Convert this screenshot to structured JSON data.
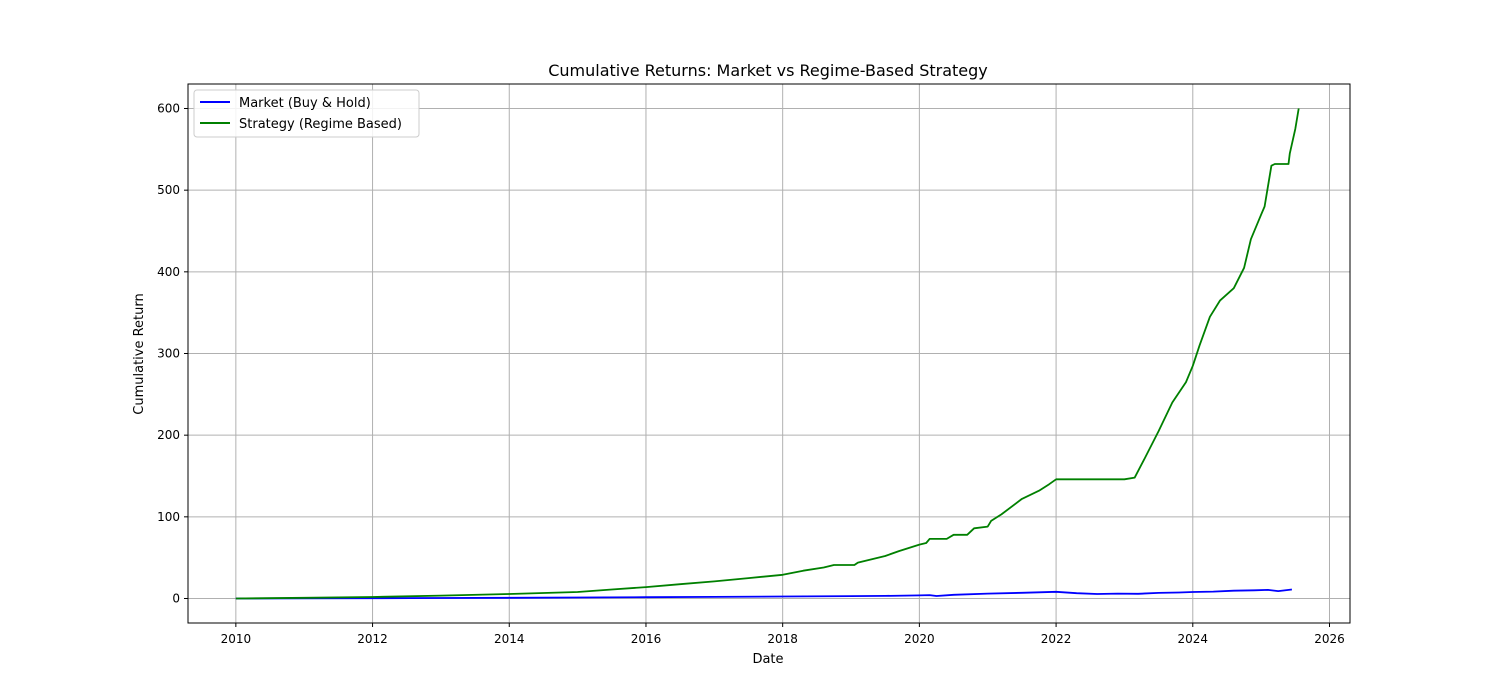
{
  "chart_data": {
    "type": "line",
    "title": "Cumulative Returns: Market vs Regime-Based Strategy",
    "xlabel": "Date",
    "ylabel": "Cumulative Return",
    "xlim": [
      2009.3,
      2026.3
    ],
    "ylim": [
      -30,
      630
    ],
    "xticks": [
      "2010",
      "2012",
      "2014",
      "2016",
      "2018",
      "2020",
      "2022",
      "2024",
      "2026"
    ],
    "yticks": [
      "0",
      "100",
      "200",
      "300",
      "400",
      "500",
      "600"
    ],
    "grid": true,
    "legend": "top-left",
    "series": [
      {
        "name": "Market (Buy & Hold)",
        "color": "#0000ff",
        "x": [
          2010.0,
          2011.0,
          2012.0,
          2013.0,
          2014.0,
          2015.0,
          2016.0,
          2017.0,
          2018.0,
          2019.0,
          2019.5,
          2020.0,
          2020.15,
          2020.25,
          2020.5,
          2021.0,
          2021.5,
          2022.0,
          2022.3,
          2022.6,
          2022.9,
          2023.2,
          2023.5,
          2023.8,
          2024.0,
          2024.3,
          2024.6,
          2024.9,
          2025.1,
          2025.25,
          2025.45
        ],
        "y": [
          0,
          0.2,
          0.4,
          0.6,
          0.9,
          1.2,
          1.6,
          1.9,
          2.4,
          2.9,
          3.2,
          3.8,
          4.2,
          3.0,
          4.5,
          6.0,
          7.0,
          8.2,
          6.5,
          5.5,
          6.0,
          5.8,
          6.8,
          7.3,
          8.0,
          8.5,
          9.5,
          10.0,
          10.5,
          9.0,
          11.0
        ]
      },
      {
        "name": "Strategy (Regime Based)",
        "color": "#008000",
        "x": [
          2010.0,
          2011.0,
          2012.0,
          2013.0,
          2014.0,
          2015.0,
          2015.5,
          2016.0,
          2016.5,
          2017.0,
          2017.5,
          2018.0,
          2018.3,
          2018.6,
          2018.75,
          2019.05,
          2019.1,
          2019.5,
          2019.7,
          2020.0,
          2020.1,
          2020.15,
          2020.4,
          2020.5,
          2020.7,
          2020.8,
          2021.0,
          2021.05,
          2021.2,
          2021.5,
          2021.75,
          2021.9,
          2022.0,
          2022.5,
          2023.0,
          2023.15,
          2023.3,
          2023.5,
          2023.7,
          2023.9,
          2024.0,
          2024.1,
          2024.25,
          2024.4,
          2024.6,
          2024.75,
          2024.85,
          2025.0,
          2025.05,
          2025.15,
          2025.2,
          2025.4,
          2025.42,
          2025.5,
          2025.55
        ],
        "y": [
          0,
          0.8,
          1.8,
          3.5,
          5.5,
          8.0,
          11.0,
          14.0,
          17.5,
          21.0,
          25.0,
          29.0,
          34.0,
          38.0,
          41.0,
          41.0,
          44.0,
          52.0,
          58.0,
          66.0,
          68.0,
          73.0,
          73.0,
          78.0,
          78.0,
          86.0,
          88.0,
          95.0,
          103.0,
          122.0,
          132.0,
          140.0,
          146.0,
          146.0,
          146.0,
          148.0,
          172.0,
          205.0,
          240.0,
          265.0,
          285.0,
          310.0,
          345.0,
          365.0,
          380.0,
          405.0,
          440.0,
          470.0,
          480.0,
          530.0,
          532.0,
          532.0,
          545.0,
          575.0,
          600.0
        ]
      }
    ]
  }
}
